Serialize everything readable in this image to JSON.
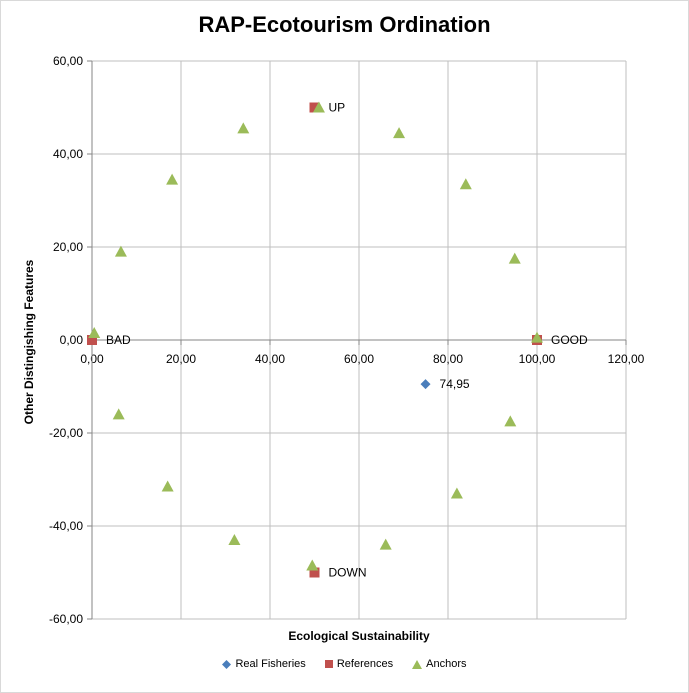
{
  "chart_data": {
    "type": "scatter",
    "title": "RAP-Ecotourism Ordination",
    "xlabel": "Ecological Sustainability",
    "ylabel": "Other Distingishing Features",
    "xlim": [
      0,
      120
    ],
    "ylim": [
      -60,
      60
    ],
    "x_ticks": [
      "0,00",
      "20,00",
      "40,00",
      "60,00",
      "80,00",
      "100,00",
      "120,00"
    ],
    "y_ticks": [
      "60,00",
      "40,00",
      "20,00",
      "0,00",
      "-20,00",
      "-40,00",
      "-60,00"
    ],
    "grid": true,
    "legend_position": "bottom",
    "series": [
      {
        "name": "Real Fisheries",
        "marker": "diamond",
        "color": "#4a7ebb",
        "points": [
          {
            "x": 74.95,
            "y": -9.5,
            "label": "74,95"
          }
        ]
      },
      {
        "name": "References",
        "marker": "square",
        "color": "#c0504d",
        "points": [
          {
            "x": 0,
            "y": 0,
            "label": "BAD"
          },
          {
            "x": 100,
            "y": 0,
            "label": "GOOD"
          },
          {
            "x": 50,
            "y": 50,
            "label": "UP"
          },
          {
            "x": 50,
            "y": -50,
            "label": "DOWN"
          }
        ]
      },
      {
        "name": "Anchors",
        "marker": "triangle",
        "color": "#9bbb59",
        "points": [
          {
            "x": 0.5,
            "y": 1.5
          },
          {
            "x": 6.5,
            "y": 19
          },
          {
            "x": 18,
            "y": 34.5
          },
          {
            "x": 34,
            "y": 45.5
          },
          {
            "x": 51,
            "y": 50
          },
          {
            "x": 69,
            "y": 44.5
          },
          {
            "x": 84,
            "y": 33.5
          },
          {
            "x": 95,
            "y": 17.5
          },
          {
            "x": 100,
            "y": 0.5
          },
          {
            "x": 94,
            "y": -17.5
          },
          {
            "x": 82,
            "y": -33
          },
          {
            "x": 66,
            "y": -44
          },
          {
            "x": 49.5,
            "y": -48.5
          },
          {
            "x": 32,
            "y": -43
          },
          {
            "x": 17,
            "y": -31.5
          },
          {
            "x": 6,
            "y": -16
          }
        ]
      }
    ]
  }
}
